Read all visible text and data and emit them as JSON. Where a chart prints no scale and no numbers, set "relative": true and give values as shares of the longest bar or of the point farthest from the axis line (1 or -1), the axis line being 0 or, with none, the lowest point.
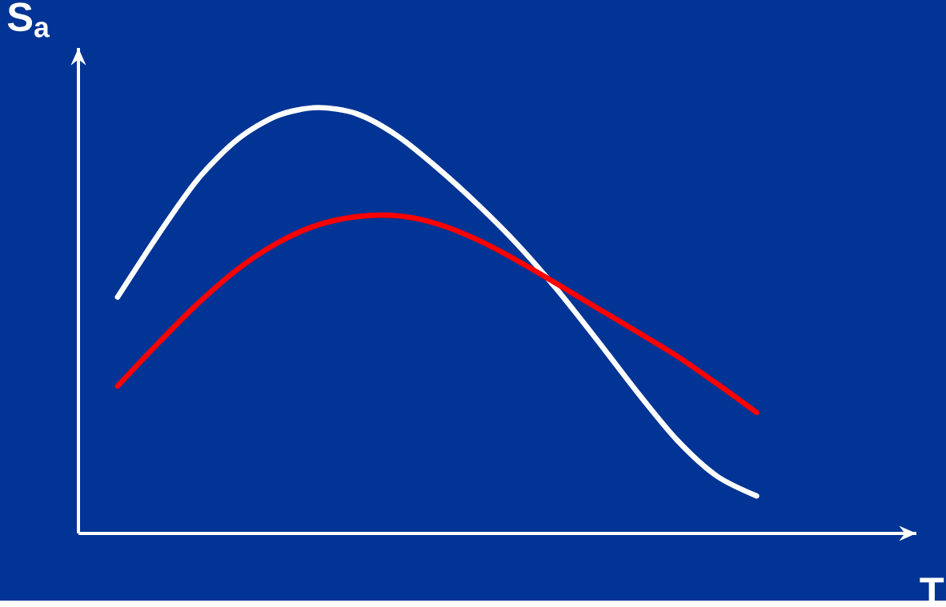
{
  "chart_data": {
    "type": "line",
    "relative": true,
    "xlabel": "T",
    "ylabel": "S$_{a}$",
    "categories": [
      null,
      null,
      null,
      null,
      null,
      null,
      null,
      null,
      null,
      null,
      null,
      null,
      null,
      null,
      null,
      null,
      null
    ],
    "series": [
      {
        "color": "#ffffff",
        "values": [
          0.555,
          0.699,
          0.831,
          0.925,
          0.981,
          1,
          0.985,
          0.934,
          0.859,
          0.774,
          0.68,
          0.573,
          0.455,
          0.333,
          0.22,
          0.135,
          0.088
        ]
      },
      {
        "color": "#ff0000",
        "values": [
          0.346,
          0.445,
          0.539,
          0.62,
          0.682,
          0.724,
          0.744,
          0.746,
          0.727,
          0.69,
          0.641,
          0.586,
          0.53,
          0.474,
          0.417,
          0.352,
          0.284
        ]
      }
    ]
  }
}
